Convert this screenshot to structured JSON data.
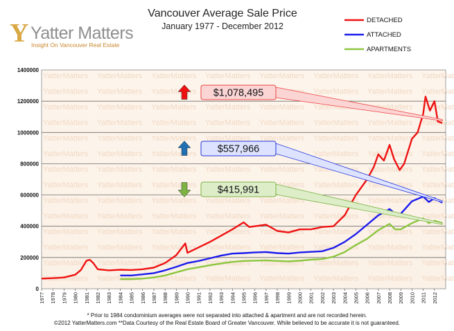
{
  "header": {
    "title": "Vancouver Average Sale Price",
    "subtitle": "January 1977 - December 2012"
  },
  "logo": {
    "mark": "Y",
    "name": "Yatter Matters",
    "tagline": "Insight On Vancouver Real Estate"
  },
  "watermark_text": "YatterMatters",
  "footnotes": [
    "* Prior to 1984 condominium averages were not separated into attached & apartment and are not recorded herein.",
    "©2012 YatterMatters.com **Data Courtesy of the Real Estate Board of Greater Vancouver.  While believed to be accurate it is not guaranteed."
  ],
  "chart_data": {
    "type": "line",
    "title": "Vancouver Average Sale Price",
    "subtitle": "January 1977 - December 2012",
    "xlabel": "",
    "ylabel": "",
    "xlim": [
      1977,
      2013
    ],
    "ylim": [
      0,
      1400000
    ],
    "yticks": [
      "0",
      "200000",
      "400000",
      "600000",
      "800000",
      "1000000",
      "1200000",
      "1400000"
    ],
    "xticks": [
      "1977",
      "1978",
      "1979",
      "1980",
      "1981",
      "1982",
      "1983",
      "1984",
      "1985",
      "1986",
      "1987",
      "1988",
      "1989",
      "1990",
      "1991",
      "1992",
      "1993",
      "1994",
      "1995",
      "1996",
      "1997",
      "1998",
      "1999",
      "2000",
      "2001",
      "2002",
      "2003",
      "2004",
      "2005",
      "2006",
      "2007",
      "2008",
      "2009",
      "2010",
      "2011",
      "2012"
    ],
    "grid": true,
    "legend_position": "top-right",
    "series": [
      {
        "name": "DETACHED",
        "color": "#ee1111",
        "x": [
          1977,
          1978,
          1979,
          1980,
          1980.5,
          1981,
          1981.3,
          1981.6,
          1982,
          1983,
          1984,
          1985,
          1986,
          1987,
          1988,
          1989,
          1989.8,
          1990,
          1991,
          1992,
          1993,
          1994,
          1995,
          1995.5,
          1996,
          1997,
          1998,
          1999,
          2000,
          2001,
          2002,
          2003,
          2004,
          2005,
          2006,
          2006.6,
          2007,
          2007.5,
          2008,
          2008.4,
          2008.9,
          2009.3,
          2010,
          2010.5,
          2011,
          2011.2,
          2011.6,
          2012,
          2012.3,
          2012.7
        ],
        "y": [
          65000,
          68000,
          72000,
          90000,
          120000,
          180000,
          185000,
          165000,
          125000,
          118000,
          122000,
          120000,
          125000,
          135000,
          165000,
          215000,
          290000,
          230000,
          265000,
          300000,
          340000,
          380000,
          425000,
          395000,
          400000,
          410000,
          370000,
          360000,
          380000,
          380000,
          395000,
          400000,
          470000,
          600000,
          700000,
          780000,
          860000,
          820000,
          920000,
          830000,
          760000,
          800000,
          960000,
          1000000,
          1120000,
          1230000,
          1140000,
          1200000,
          1070000,
          1060000
        ]
      },
      {
        "name": "ATTACHED",
        "color": "#1a1aee",
        "x": [
          1984,
          1985,
          1986,
          1987,
          1988,
          1989,
          1990,
          1991,
          1992,
          1993,
          1994,
          1995,
          1996,
          1997,
          1998,
          1999,
          2000,
          2001,
          2002,
          2003,
          2004,
          2005,
          2006,
          2007,
          2008,
          2008.5,
          2009,
          2010,
          2011,
          2011.5,
          2012,
          2012.7
        ],
        "y": [
          85000,
          85000,
          92000,
          100000,
          118000,
          140000,
          165000,
          178000,
          195000,
          212000,
          225000,
          228000,
          232000,
          235000,
          228000,
          225000,
          232000,
          236000,
          240000,
          262000,
          300000,
          350000,
          410000,
          470000,
          510000,
          480000,
          480000,
          560000,
          590000,
          555000,
          580000,
          550000
        ]
      },
      {
        "name": "APARTMENTS",
        "color": "#8cc63f",
        "x": [
          1984,
          1985,
          1986,
          1987,
          1988,
          1989,
          1990,
          1991,
          1992,
          1993,
          1994,
          1995,
          1996,
          1997,
          1998,
          1999,
          2000,
          2001,
          2002,
          2003,
          2004,
          2005,
          2006,
          2007,
          2008,
          2008.5,
          2009,
          2010,
          2011,
          2011.5,
          2012,
          2012.7
        ],
        "y": [
          62000,
          62000,
          65000,
          72000,
          85000,
          105000,
          125000,
          138000,
          150000,
          162000,
          172000,
          178000,
          180000,
          182000,
          178000,
          175000,
          180000,
          186000,
          190000,
          205000,
          235000,
          280000,
          320000,
          375000,
          415000,
          380000,
          380000,
          420000,
          450000,
          420000,
          435000,
          420000
        ]
      }
    ],
    "annotations": [
      {
        "text": "$1,078,495",
        "series": "DETACHED",
        "direction": "up",
        "arrow_color": "#ee1111",
        "box_fill": "#fbd4d4",
        "box_stroke": "#ee4444",
        "target": [
          2012.7,
          1078495
        ]
      },
      {
        "text": "$557,966",
        "series": "ATTACHED",
        "direction": "up",
        "arrow_color": "#1f6fb2",
        "box_fill": "#dde3ff",
        "box_stroke": "#2233dd",
        "target": [
          2012.7,
          557966
        ]
      },
      {
        "text": "$415,991",
        "series": "APARTMENTS",
        "direction": "down",
        "arrow_color": "#7cb342",
        "box_fill": "#dcedc8",
        "box_stroke": "#7cb342",
        "target": [
          2012.7,
          415991
        ]
      }
    ]
  }
}
